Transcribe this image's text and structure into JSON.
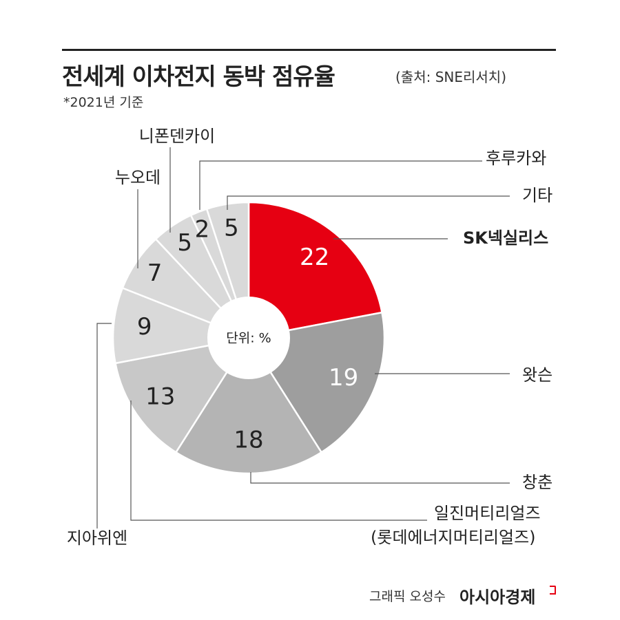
{
  "header": {
    "title": "전세계 이차전지 동박 점유율",
    "source": "(출처: SNE리서치)",
    "basis": "*2021년 기준"
  },
  "colors": {
    "accent": "#e60012",
    "leader": "#555555",
    "slice_border": "#ffffff"
  },
  "chart_data": {
    "type": "pie",
    "donut": true,
    "center_label": "단위: %",
    "slices": [
      {
        "label": "SK넥실리스",
        "value": 22,
        "color": "#e60012"
      },
      {
        "label": "왓슨",
        "value": 19,
        "color": "#9e9e9e"
      },
      {
        "label": "창춘",
        "value": 18,
        "color": "#b4b4b4"
      },
      {
        "label": "일진머티리얼즈\n(롯데에너지머티리얼즈)",
        "value": 13,
        "color": "#c8c8c8"
      },
      {
        "label": "지아위엔",
        "value": 9,
        "color": "#d9d9d9"
      },
      {
        "label": "누오데",
        "value": 7,
        "color": "#d9d9d9"
      },
      {
        "label": "니폰덴카이",
        "value": 5,
        "color": "#d9d9d9"
      },
      {
        "label": "후루카와",
        "value": 2,
        "color": "#d9d9d9"
      },
      {
        "label": "기타",
        "value": 5,
        "color": "#d9d9d9"
      }
    ]
  },
  "footer": {
    "credit": "그래픽 오성수",
    "brand": "아시아경제"
  }
}
